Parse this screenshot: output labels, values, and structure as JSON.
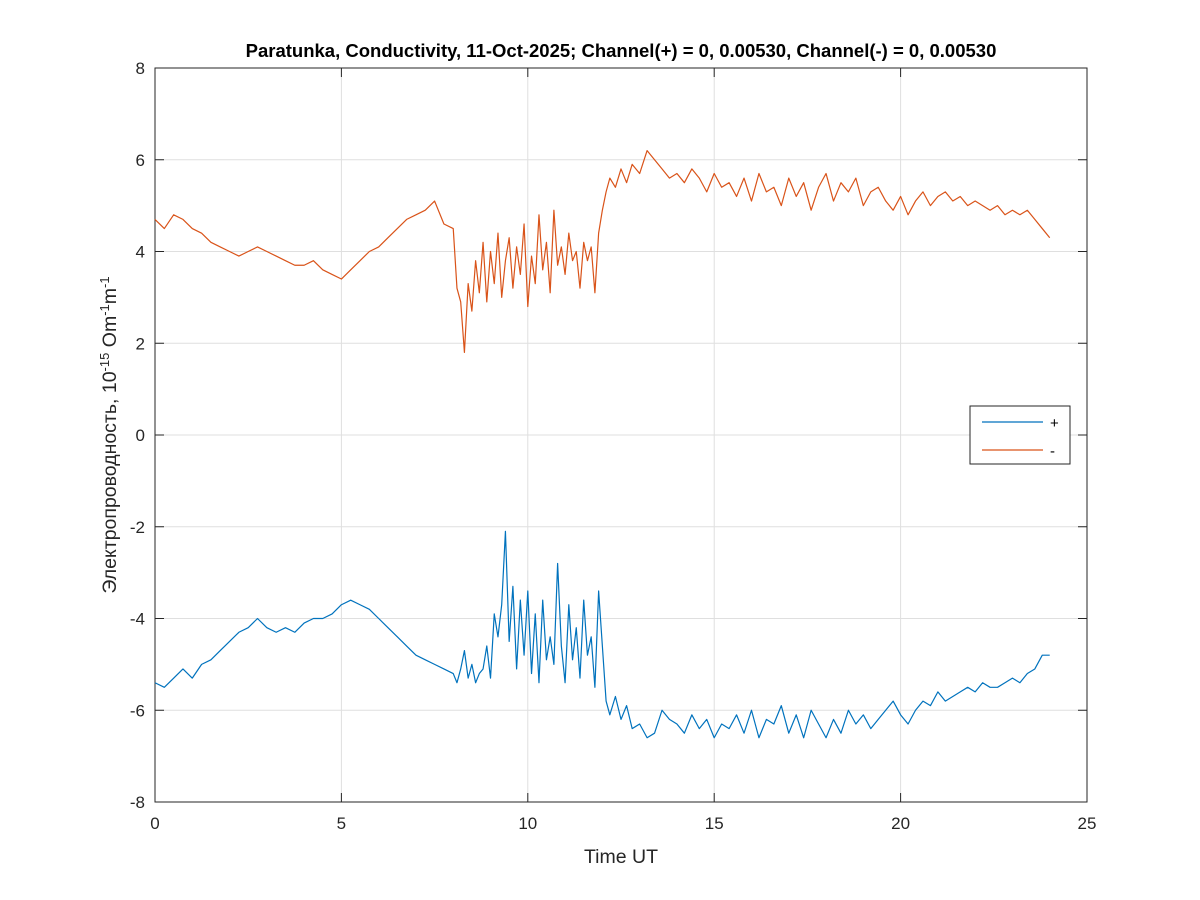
{
  "chart_data": {
    "type": "line",
    "title": "Paratunka, Conductivity, 11-Oct-2025; Channel(+) = 0, 0.00530, Channel(-) = 0, 0.00530",
    "xlabel": "Time UT",
    "ylabel": "Электропроводность, 10-15 Om-1m-1",
    "ylabel_parts": {
      "prefix": "Электропроводность, 10",
      "exp1": "-15",
      "middle": " Om",
      "exp2": "-1",
      "unit": "m",
      "exp3": "-1"
    },
    "xlim": [
      0,
      25
    ],
    "ylim": [
      -8,
      8
    ],
    "xticks": [
      0,
      5,
      10,
      15,
      20,
      25
    ],
    "yticks": [
      -8,
      -6,
      -4,
      -2,
      0,
      2,
      4,
      6,
      8
    ],
    "grid": true,
    "legend": {
      "location": "right",
      "entries": [
        "+",
        "-"
      ]
    },
    "series": [
      {
        "name": "+",
        "color": "#0072bd",
        "x": [
          0,
          0.25,
          0.5,
          0.75,
          1,
          1.25,
          1.5,
          1.75,
          2,
          2.25,
          2.5,
          2.75,
          3,
          3.25,
          3.5,
          3.75,
          4,
          4.25,
          4.5,
          4.75,
          5,
          5.25,
          5.5,
          5.75,
          6,
          6.25,
          6.5,
          6.75,
          7,
          7.25,
          7.5,
          7.75,
          8,
          8.1,
          8.2,
          8.3,
          8.4,
          8.5,
          8.6,
          8.7,
          8.8,
          8.9,
          9,
          9.1,
          9.2,
          9.3,
          9.4,
          9.5,
          9.6,
          9.7,
          9.8,
          9.9,
          10,
          10.1,
          10.2,
          10.3,
          10.4,
          10.5,
          10.6,
          10.7,
          10.8,
          10.9,
          11,
          11.1,
          11.2,
          11.3,
          11.4,
          11.5,
          11.6,
          11.7,
          11.8,
          11.9,
          12,
          12.1,
          12.2,
          12.35,
          12.5,
          12.65,
          12.8,
          13,
          13.2,
          13.4,
          13.6,
          13.8,
          14,
          14.2,
          14.4,
          14.6,
          14.8,
          15,
          15.2,
          15.4,
          15.6,
          15.8,
          16,
          16.2,
          16.4,
          16.6,
          16.8,
          17,
          17.2,
          17.4,
          17.6,
          17.8,
          18,
          18.2,
          18.4,
          18.6,
          18.8,
          19,
          19.2,
          19.4,
          19.6,
          19.8,
          20,
          20.2,
          20.4,
          20.6,
          20.8,
          21,
          21.2,
          21.4,
          21.6,
          21.8,
          22,
          22.2,
          22.4,
          22.6,
          22.8,
          23,
          23.2,
          23.4,
          23.6,
          23.8,
          24
        ],
        "y": [
          -5.4,
          -5.5,
          -5.3,
          -5.1,
          -5.3,
          -5.0,
          -4.9,
          -4.7,
          -4.5,
          -4.3,
          -4.2,
          -4.0,
          -4.2,
          -4.3,
          -4.2,
          -4.3,
          -4.1,
          -4.0,
          -4.0,
          -3.9,
          -3.7,
          -3.6,
          -3.7,
          -3.8,
          -4.0,
          -4.2,
          -4.4,
          -4.6,
          -4.8,
          -4.9,
          -5.0,
          -5.1,
          -5.2,
          -5.4,
          -5.1,
          -4.7,
          -5.3,
          -5.0,
          -5.4,
          -5.2,
          -5.1,
          -4.6,
          -5.3,
          -3.9,
          -4.4,
          -3.7,
          -2.1,
          -4.5,
          -3.3,
          -5.1,
          -3.6,
          -4.8,
          -3.4,
          -5.2,
          -3.9,
          -5.4,
          -3.6,
          -4.9,
          -4.4,
          -5.0,
          -2.8,
          -4.6,
          -5.4,
          -3.7,
          -4.9,
          -4.2,
          -5.3,
          -3.6,
          -4.8,
          -4.4,
          -5.5,
          -3.4,
          -4.6,
          -5.8,
          -6.1,
          -5.7,
          -6.2,
          -5.9,
          -6.4,
          -6.3,
          -6.6,
          -6.5,
          -6.0,
          -6.2,
          -6.3,
          -6.5,
          -6.1,
          -6.4,
          -6.2,
          -6.6,
          -6.3,
          -6.4,
          -6.1,
          -6.5,
          -6.0,
          -6.6,
          -6.2,
          -6.3,
          -5.9,
          -6.5,
          -6.1,
          -6.6,
          -6.0,
          -6.3,
          -6.6,
          -6.2,
          -6.5,
          -6.0,
          -6.3,
          -6.1,
          -6.4,
          -6.2,
          -6.0,
          -5.8,
          -6.1,
          -6.3,
          -6.0,
          -5.8,
          -5.9,
          -5.6,
          -5.8,
          -5.7,
          -5.6,
          -5.5,
          -5.6,
          -5.4,
          -5.5,
          -5.5,
          -5.4,
          -5.3,
          -5.4,
          -5.2,
          -5.1,
          -4.8,
          -4.8
        ]
      },
      {
        "name": "-",
        "color": "#d95319",
        "x": [
          0,
          0.25,
          0.5,
          0.75,
          1,
          1.25,
          1.5,
          1.75,
          2,
          2.25,
          2.5,
          2.75,
          3,
          3.25,
          3.5,
          3.75,
          4,
          4.25,
          4.5,
          4.75,
          5,
          5.25,
          5.5,
          5.75,
          6,
          6.25,
          6.5,
          6.75,
          7,
          7.25,
          7.5,
          7.75,
          8,
          8.1,
          8.2,
          8.3,
          8.4,
          8.5,
          8.6,
          8.7,
          8.8,
          8.9,
          9,
          9.1,
          9.2,
          9.3,
          9.4,
          9.5,
          9.6,
          9.7,
          9.8,
          9.9,
          10,
          10.1,
          10.2,
          10.3,
          10.4,
          10.5,
          10.6,
          10.7,
          10.8,
          10.9,
          11,
          11.1,
          11.2,
          11.3,
          11.4,
          11.5,
          11.6,
          11.7,
          11.8,
          11.9,
          12,
          12.1,
          12.2,
          12.35,
          12.5,
          12.65,
          12.8,
          13,
          13.2,
          13.4,
          13.6,
          13.8,
          14,
          14.2,
          14.4,
          14.6,
          14.8,
          15,
          15.2,
          15.4,
          15.6,
          15.8,
          16,
          16.2,
          16.4,
          16.6,
          16.8,
          17,
          17.2,
          17.4,
          17.6,
          17.8,
          18,
          18.2,
          18.4,
          18.6,
          18.8,
          19,
          19.2,
          19.4,
          19.6,
          19.8,
          20,
          20.2,
          20.4,
          20.6,
          20.8,
          21,
          21.2,
          21.4,
          21.6,
          21.8,
          22,
          22.2,
          22.4,
          22.6,
          22.8,
          23,
          23.2,
          23.4,
          23.6,
          23.8,
          24
        ],
        "y": [
          4.7,
          4.5,
          4.8,
          4.7,
          4.5,
          4.4,
          4.2,
          4.1,
          4.0,
          3.9,
          4.0,
          4.1,
          4.0,
          3.9,
          3.8,
          3.7,
          3.7,
          3.8,
          3.6,
          3.5,
          3.4,
          3.6,
          3.8,
          4.0,
          4.1,
          4.3,
          4.5,
          4.7,
          4.8,
          4.9,
          5.1,
          4.6,
          4.5,
          3.2,
          2.9,
          1.8,
          3.3,
          2.7,
          3.8,
          3.1,
          4.2,
          2.9,
          4.0,
          3.3,
          4.4,
          3.0,
          3.8,
          4.3,
          3.2,
          4.1,
          3.5,
          4.6,
          2.8,
          3.9,
          3.3,
          4.8,
          3.6,
          4.2,
          3.1,
          4.9,
          3.7,
          4.1,
          3.5,
          4.4,
          3.8,
          4.0,
          3.2,
          4.2,
          3.8,
          4.1,
          3.1,
          4.4,
          4.9,
          5.3,
          5.6,
          5.4,
          5.8,
          5.5,
          5.9,
          5.7,
          6.2,
          6.0,
          5.8,
          5.6,
          5.7,
          5.5,
          5.8,
          5.6,
          5.3,
          5.7,
          5.4,
          5.5,
          5.2,
          5.6,
          5.1,
          5.7,
          5.3,
          5.4,
          5.0,
          5.6,
          5.2,
          5.5,
          4.9,
          5.4,
          5.7,
          5.1,
          5.5,
          5.3,
          5.6,
          5.0,
          5.3,
          5.4,
          5.1,
          4.9,
          5.2,
          4.8,
          5.1,
          5.3,
          5.0,
          5.2,
          5.3,
          5.1,
          5.2,
          5.0,
          5.1,
          5.0,
          4.9,
          5.0,
          4.8,
          4.9,
          4.8,
          4.9,
          4.7,
          4.5,
          4.3
        ]
      }
    ]
  }
}
